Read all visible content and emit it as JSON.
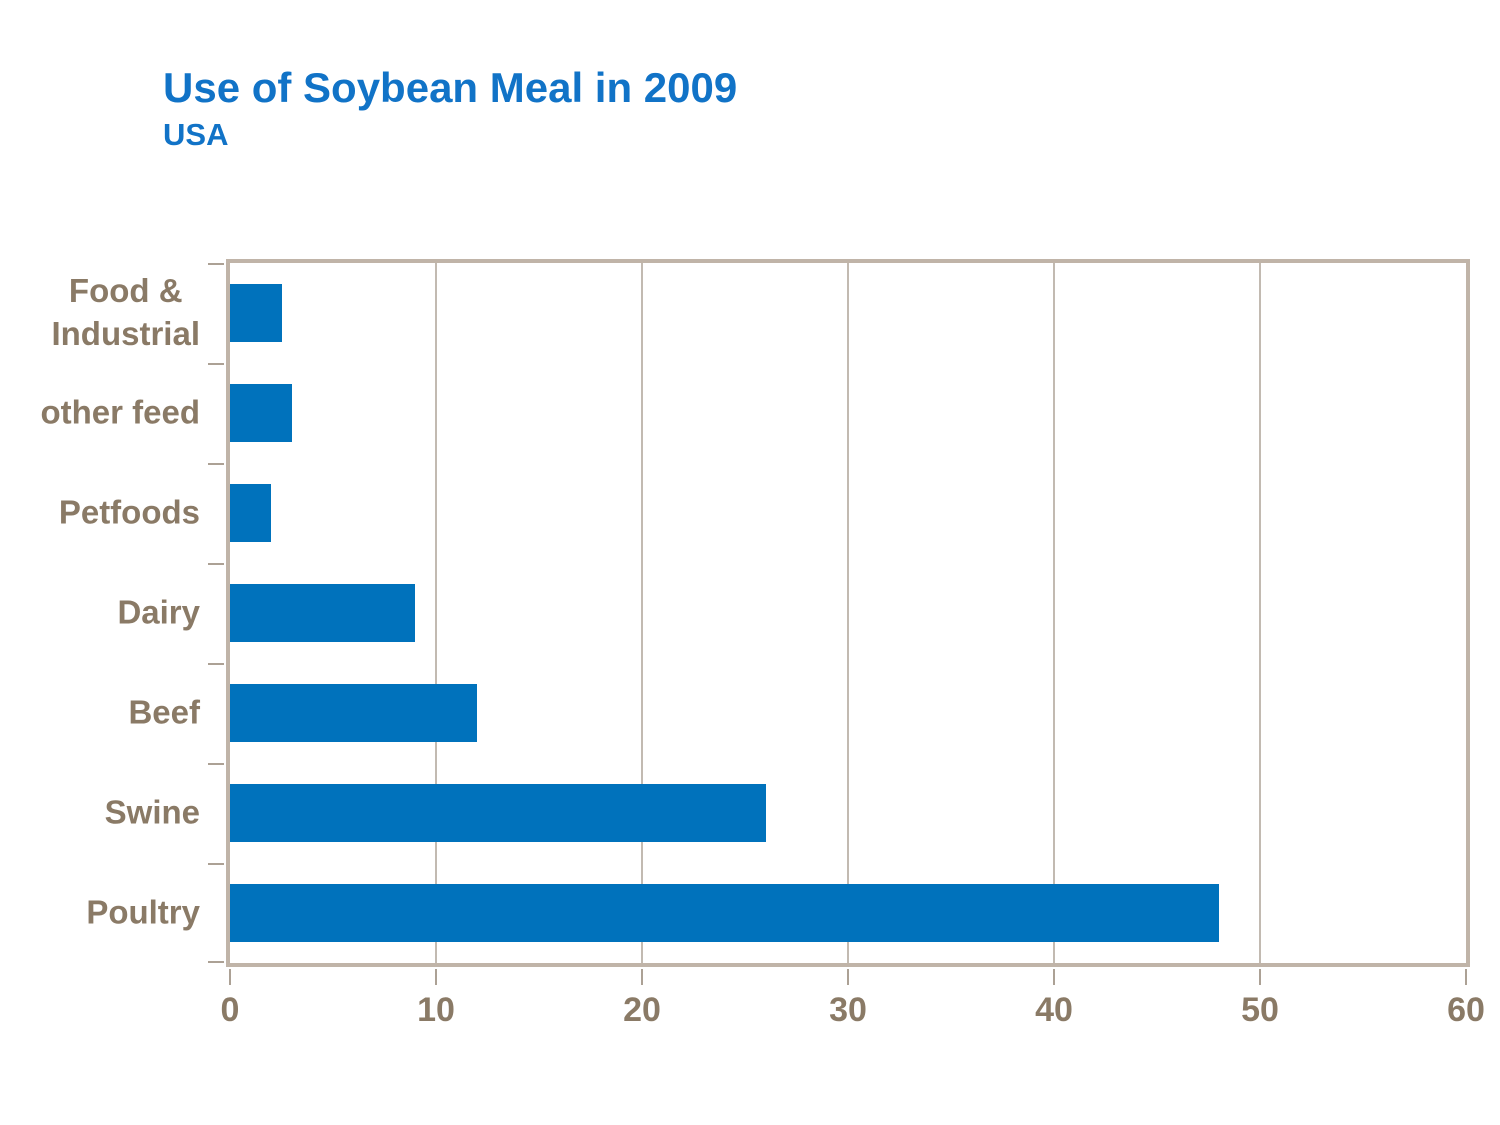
{
  "chart_data": {
    "type": "bar",
    "orientation": "horizontal",
    "title": "Use of Soybean Meal in 2009",
    "subtitle": "USA",
    "categories": [
      "Food & Industrial",
      "other feed",
      "Petfoods",
      "Dairy",
      "Beef",
      "Swine",
      "Poultry"
    ],
    "category_display": [
      "Food &\nIndustrial",
      "other feed",
      "Petfoods",
      "Dairy",
      "Beef",
      "Swine",
      "Poultry"
    ],
    "values": [
      2.5,
      3,
      2,
      9,
      12,
      26,
      48
    ],
    "x_ticks": [
      "0",
      "10",
      "20",
      "30",
      "40",
      "50",
      "60"
    ],
    "xlim": [
      0,
      60
    ],
    "xlabel": "",
    "ylabel": "",
    "grid": true,
    "legend": false,
    "colors": {
      "bar": "#0072BC",
      "title": "#1173C7",
      "category_label": "#8A7A66",
      "axis_label": "#8A7A66",
      "axis_border": "#C0B4A8",
      "gridline": "#C2BAB1",
      "tick": "#ACA195"
    }
  }
}
